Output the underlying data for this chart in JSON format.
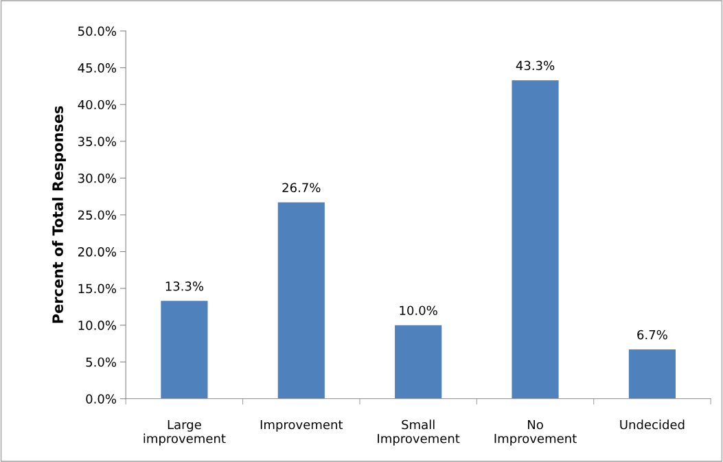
{
  "chart_data": {
    "type": "bar",
    "ylabel": "Percent of Total Responses",
    "categories": [
      "Large improvement",
      "Improvement",
      "Small Improvement",
      "No Improvement",
      "Undecided"
    ],
    "values": [
      13.3,
      26.7,
      10.0,
      43.3,
      6.7
    ],
    "value_labels": [
      "13.3%",
      "26.7%",
      "10.0%",
      "43.3%",
      "6.7%"
    ],
    "color": "#4f81bd",
    "ylim": [
      0,
      50
    ],
    "yticks": [
      {
        "value": 0,
        "label": "0.0%"
      },
      {
        "value": 5,
        "label": "5.0%"
      },
      {
        "value": 10,
        "label": "10.0%"
      },
      {
        "value": 15,
        "label": "15.0%"
      },
      {
        "value": 20,
        "label": "20.0%"
      },
      {
        "value": 25,
        "label": "25.0%"
      },
      {
        "value": 30,
        "label": "30.0%"
      },
      {
        "value": 35,
        "label": "35.0%"
      },
      {
        "value": 40,
        "label": "40.0%"
      },
      {
        "value": 45,
        "label": "45.0%"
      },
      {
        "value": 50,
        "label": "50.0%"
      }
    ],
    "grid": false
  }
}
